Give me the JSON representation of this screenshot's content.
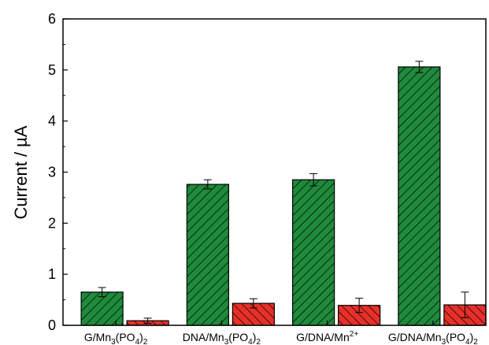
{
  "chart_data": {
    "type": "bar",
    "title": "",
    "xlabel": "",
    "ylabel": "Current / µA",
    "ylim": [
      0,
      6
    ],
    "yticks": [
      "0",
      "1",
      "2",
      "3",
      "4",
      "5",
      "6"
    ],
    "categories": [
      {
        "base": "G/Mn",
        "sub1": "3",
        "mid": "(PO",
        "sub2": "4",
        "end": ")",
        "sub3": "2",
        "sup": ""
      },
      {
        "base": "DNA/Mn",
        "sub1": "3",
        "mid": "(PO",
        "sub2": "4",
        "end": ")",
        "sub3": "2",
        "sup": ""
      },
      {
        "base": "G/DNA/Mn",
        "sub1": "",
        "mid": "",
        "sub2": "",
        "end": "",
        "sub3": "",
        "sup": "2+"
      },
      {
        "base": "G/DNA/Mn",
        "sub1": "3",
        "mid": "(PO",
        "sub2": "4",
        "end": ")",
        "sub3": "2",
        "sup": ""
      }
    ],
    "series": [
      {
        "values": [
          0.65,
          2.76,
          2.85,
          5.06
        ],
        "errors": [
          0.09,
          0.09,
          0.12,
          0.11
        ],
        "color": "#1f8a3b",
        "hatch": "diag-right"
      },
      {
        "values": [
          0.09,
          0.43,
          0.39,
          0.4
        ],
        "errors": [
          0.05,
          0.09,
          0.14,
          0.25
        ],
        "color": "#e8302a",
        "hatch": "diag-left"
      }
    ],
    "grid": false,
    "legend": "none"
  }
}
